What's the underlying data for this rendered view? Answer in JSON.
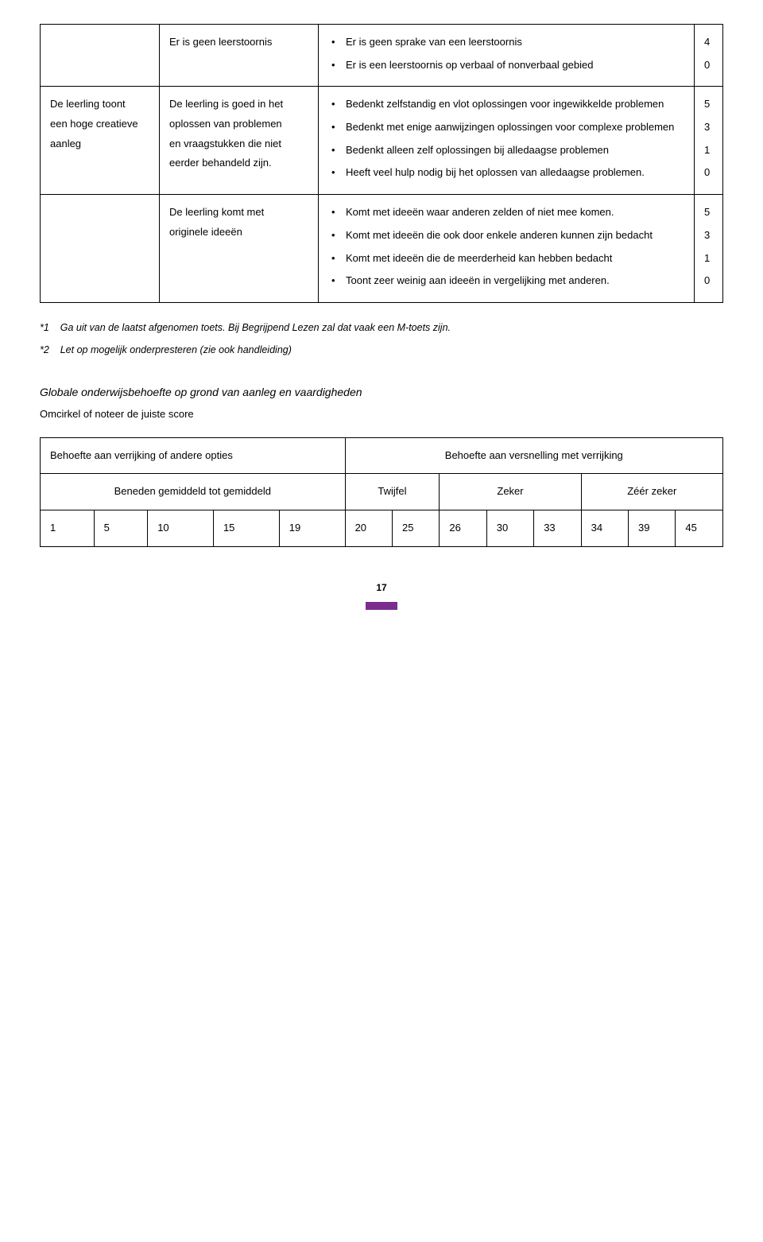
{
  "row0": {
    "col2": "Er is geen leerstoornis",
    "items": [
      "Er is geen sprake van een leerstoornis",
      "Er is een leerstoornis op verbaal of nonverbaal gebied"
    ],
    "scores": [
      "4",
      "",
      "0"
    ]
  },
  "row1": {
    "col1_a": "De leerling toont",
    "col1_b": "een hoge creatieve",
    "col1_c": "aanleg",
    "col2_a": "De leerling is goed in het",
    "col2_b": "oplossen van problemen",
    "col2_c": "en vraagstukken die niet",
    "col2_d": "eerder behandeld zijn.",
    "items": [
      "Bedenkt zelfstandig en vlot oplossingen voor ingewikkelde problemen",
      "Bedenkt met enige aanwijzingen oplossingen voor complexe problemen",
      "Bedenkt alleen zelf oplossingen bij alledaagse problemen",
      "Heeft veel hulp nodig bij het oplossen van alledaagse problemen."
    ],
    "scores": [
      "5",
      "",
      "",
      "3",
      "",
      "",
      "1",
      "",
      "0"
    ]
  },
  "row2": {
    "col2_a": "De leerling komt met",
    "col2_b": "originele ideeën",
    "items": [
      "Komt met ideeën waar anderen zelden of niet mee komen.",
      "Komt met ideeën die ook door enkele anderen kunnen zijn bedacht",
      "Komt met ideeën die de meerderheid kan hebben bedacht",
      "Toont zeer weinig aan ideeën in vergelijking met anderen."
    ],
    "scores": [
      "5",
      "",
      "",
      "3",
      "",
      "",
      "1",
      "",
      "",
      "0"
    ]
  },
  "notes": {
    "n1_label": "*1",
    "n1_text": "Ga uit van de laatst afgenomen toets. Bij Begrijpend Lezen zal dat vaak een M-toets zijn.",
    "n2_label": "*2",
    "n2_text": "Let op mogelijk onderpresteren (zie ook handleiding)"
  },
  "section": {
    "title": "Globale onderwijsbehoefte op grond van aanleg en vaardigheden",
    "sub": "Omcirkel of noteer de juiste score"
  },
  "scoretable": {
    "h1": "Behoefte aan verrijking of andere opties",
    "h2": "Behoefte aan versnelling met verrijking",
    "r1": "Beneden gemiddeld tot gemiddeld",
    "r2": "Twijfel",
    "r3": "Zeker",
    "r4": "Zéér zeker",
    "nums": [
      "1",
      "5",
      "10",
      "15",
      "19",
      "20",
      "25",
      "26",
      "30",
      "33",
      "34",
      "39",
      "45"
    ]
  },
  "page_number": "17"
}
